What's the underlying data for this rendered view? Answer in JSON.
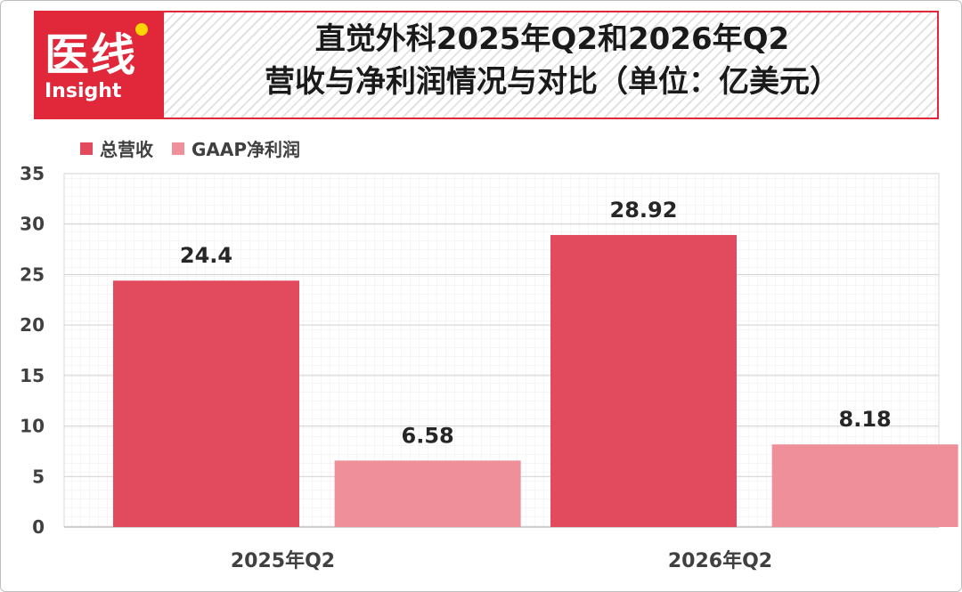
{
  "header": {
    "logo_cn": "医线",
    "logo_en": "Insight",
    "title_line1": "直觉外科2025年Q2和2026年Q2",
    "title_line2": "营收与净利润情况与对比（单位：亿美元）"
  },
  "colors": {
    "accent": "#e0283a",
    "revenue": "#e24a5e",
    "net_income": "#ef8f9a"
  },
  "chart_data": {
    "type": "bar",
    "title": "直觉外科2025年Q2和2026年Q2营收与净利润情况与对比（单位：亿美元）",
    "categories": [
      "2025年Q2",
      "2026年Q2"
    ],
    "series": [
      {
        "name": "总营收",
        "values": [
          24.4,
          28.92
        ],
        "labels": [
          "24.4",
          "28.92"
        ]
      },
      {
        "name": "GAAP净利润",
        "values": [
          6.58,
          8.18
        ],
        "labels": [
          "6.58",
          "8.18"
        ]
      }
    ],
    "ylim": [
      0,
      35
    ],
    "yticks": [
      "0",
      "5",
      "10",
      "15",
      "20",
      "25",
      "30",
      "35"
    ],
    "xlabel": "",
    "ylabel": "",
    "grid": true,
    "legend": "top-left"
  }
}
